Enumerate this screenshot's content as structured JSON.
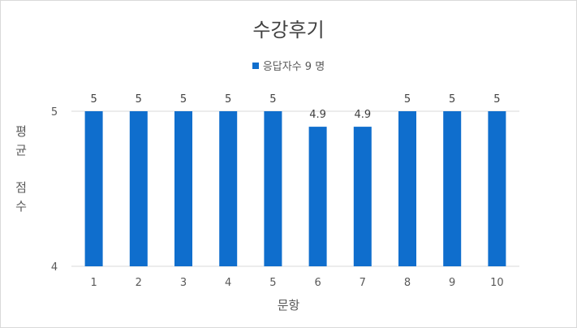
{
  "chart_data": {
    "type": "bar",
    "title": "수강후기",
    "legend": {
      "label": "응답자수 9 명",
      "position": "top"
    },
    "series": [
      {
        "name": "응답자수 9 명",
        "color": "#0F6ECD",
        "values": [
          5,
          5,
          5,
          5,
          5,
          4.9,
          4.9,
          5,
          5,
          5
        ]
      }
    ],
    "categories": [
      "1",
      "2",
      "3",
      "4",
      "5",
      "6",
      "7",
      "8",
      "9",
      "10"
    ],
    "data_labels": [
      "5",
      "5",
      "5",
      "5",
      "5",
      "4.9",
      "4.9",
      "5",
      "5",
      "5"
    ],
    "xlabel": "문항",
    "ylabel": "평\n균\n\n점\n수",
    "ylim": [
      4,
      5
    ],
    "yticks": [
      {
        "value": 5,
        "label": "5"
      },
      {
        "value": 4,
        "label": "4"
      }
    ],
    "grid": true,
    "gridline_color": "#d9d9d9"
  }
}
